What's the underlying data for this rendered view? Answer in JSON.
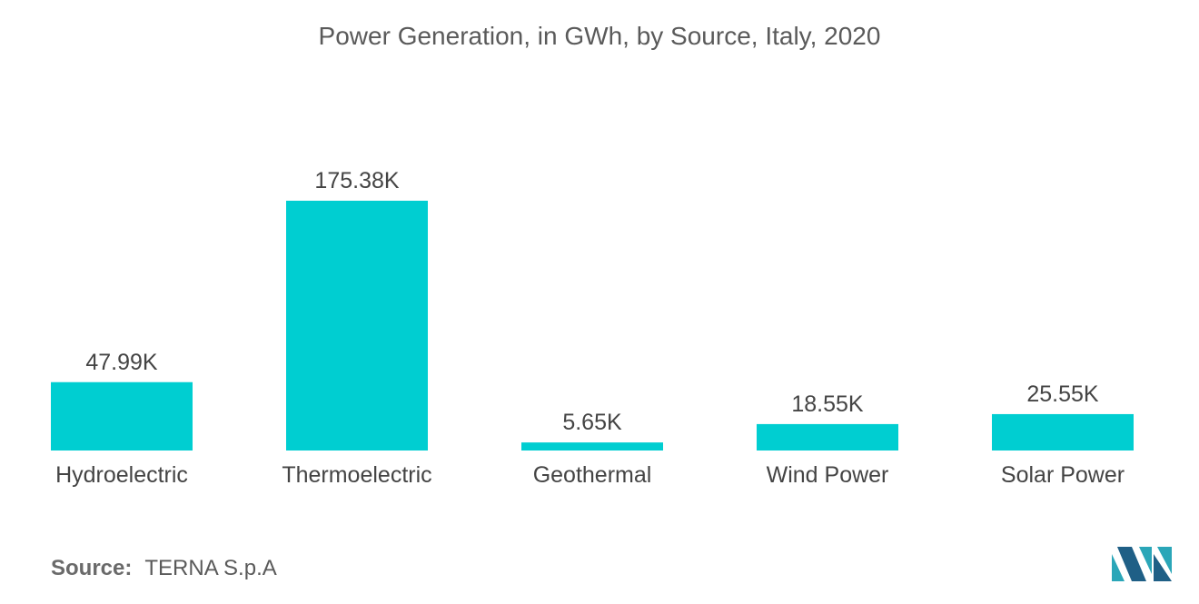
{
  "source": {
    "label": "Source:",
    "value": "TERNA S.p.A"
  },
  "colors": {
    "bar": "#00CED1",
    "text": "#444444"
  },
  "chart_data": {
    "type": "bar",
    "title": "Power Generation, in GWh, by Source, Italy, 2020",
    "categories": [
      "Hydroelectric",
      "Thermoelectric",
      "Geothermal",
      "Wind Power",
      "Solar Power"
    ],
    "values": [
      47990,
      175380,
      5650,
      18550,
      25550
    ],
    "value_labels": [
      "47.99K",
      "175.38K",
      "5.65K",
      "18.55K",
      "25.55K"
    ],
    "xlabel": "",
    "ylabel": "",
    "ylim": [
      0,
      175380
    ],
    "grid": false,
    "legend": "none"
  }
}
